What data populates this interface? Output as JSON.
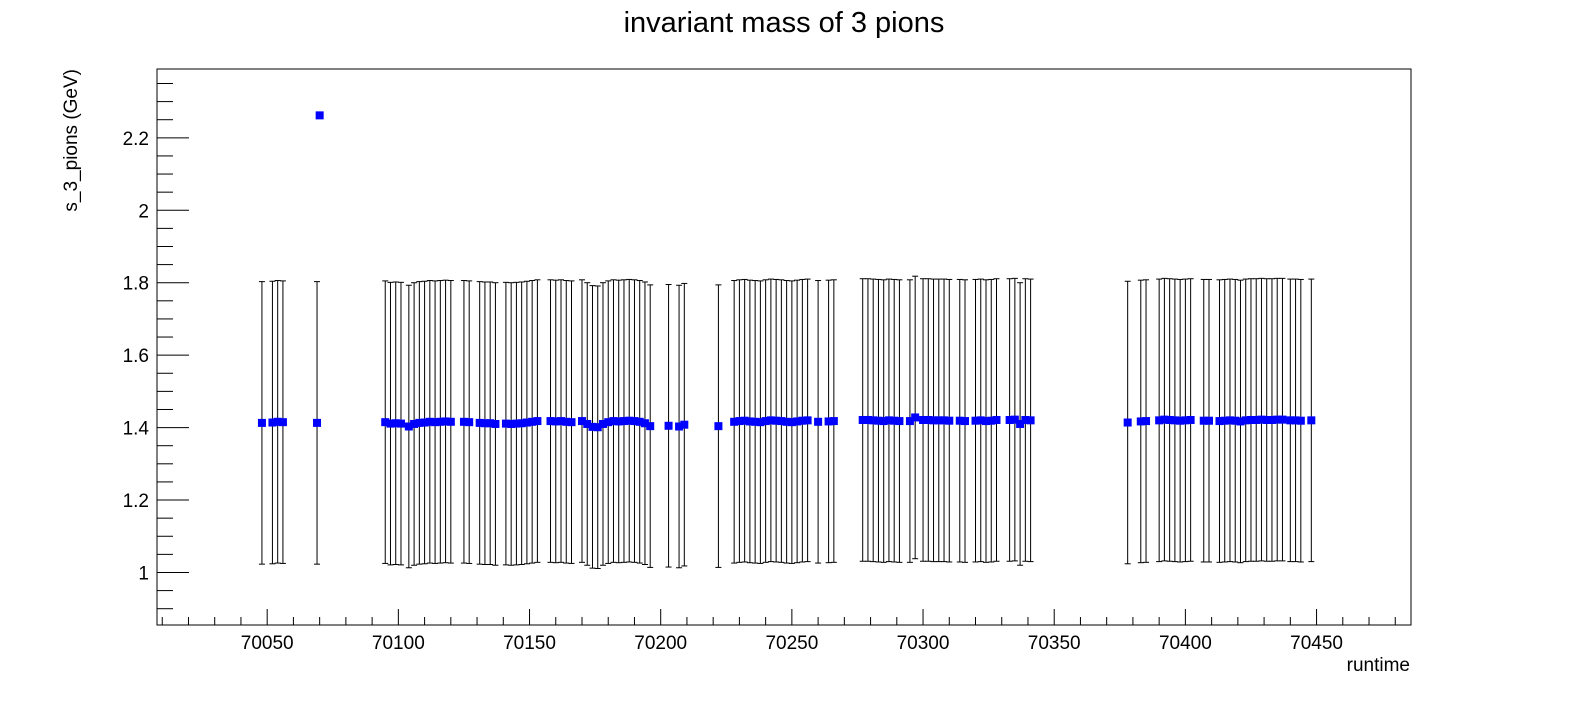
{
  "chart_data": {
    "type": "scatter",
    "title": "invariant mass of 3 pions",
    "xlabel": "runtime",
    "ylabel": "s_3_pions (GeV)",
    "xlim": [
      70008,
      70486
    ],
    "ylim": [
      0.855,
      2.39
    ],
    "x_ticks": [
      70050,
      70100,
      70150,
      70200,
      70250,
      70300,
      70350,
      70400,
      70450
    ],
    "x_tick_labels": [
      "70050",
      "70100",
      "70150",
      "70200",
      "70250",
      "70300",
      "70350",
      "70400",
      "70450"
    ],
    "y_ticks": [
      1.0,
      1.2,
      1.4,
      1.6,
      1.8,
      2.0,
      2.2
    ],
    "y_tick_labels": [
      "1",
      "1.2",
      "1.4",
      "1.6",
      "1.8",
      "2",
      "2.2"
    ],
    "grid": false,
    "marker_color": "#0000ff",
    "errorbar_color": "#000000",
    "series": [
      {
        "x": [
          70048,
          70052,
          70054,
          70056,
          70069,
          70070,
          70095,
          70097,
          70099,
          70101,
          70104,
          70106,
          70108,
          70110,
          70112,
          70114,
          70116,
          70118,
          70120,
          70125,
          70127,
          70131,
          70133,
          70135,
          70137,
          70141,
          70143,
          70145,
          70147,
          70149,
          70151,
          70153,
          70158,
          70160,
          70162,
          70164,
          70166,
          70170,
          70172,
          70174,
          70176,
          70178,
          70180,
          70182,
          70184,
          70186,
          70188,
          70190,
          70192,
          70194,
          70196,
          70203,
          70207,
          70209,
          70222,
          70228,
          70230,
          70232,
          70234,
          70236,
          70238,
          70240,
          70242,
          70244,
          70246,
          70248,
          70250,
          70252,
          70254,
          70256,
          70260,
          70264,
          70266,
          70277,
          70279,
          70281,
          70283,
          70285,
          70287,
          70289,
          70291,
          70295,
          70297,
          70300,
          70302,
          70304,
          70306,
          70308,
          70310,
          70314,
          70316,
          70320,
          70322,
          70324,
          70326,
          70328,
          70333,
          70335,
          70337,
          70339,
          70341,
          70378,
          70383,
          70385,
          70390,
          70392,
          70394,
          70396,
          70398,
          70400,
          70402,
          70407,
          70409,
          70413,
          70415,
          70417,
          70419,
          70421,
          70423,
          70425,
          70427,
          70429,
          70431,
          70433,
          70435,
          70437,
          70440,
          70442,
          70444,
          70448
        ],
        "y": [
          1.413,
          1.414,
          1.416,
          1.415,
          1.413,
          2.262,
          1.415,
          1.411,
          1.412,
          1.411,
          1.403,
          1.41,
          1.413,
          1.414,
          1.416,
          1.415,
          1.416,
          1.417,
          1.416,
          1.416,
          1.415,
          1.413,
          1.412,
          1.412,
          1.41,
          1.411,
          1.41,
          1.411,
          1.412,
          1.414,
          1.416,
          1.418,
          1.418,
          1.417,
          1.418,
          1.416,
          1.415,
          1.418,
          1.41,
          1.402,
          1.401,
          1.41,
          1.415,
          1.418,
          1.417,
          1.418,
          1.419,
          1.418,
          1.416,
          1.412,
          1.404,
          1.405,
          1.403,
          1.408,
          1.404,
          1.416,
          1.418,
          1.419,
          1.417,
          1.416,
          1.415,
          1.418,
          1.42,
          1.419,
          1.418,
          1.416,
          1.415,
          1.417,
          1.419,
          1.42,
          1.416,
          1.417,
          1.418,
          1.421,
          1.421,
          1.42,
          1.419,
          1.418,
          1.42,
          1.419,
          1.418,
          1.418,
          1.428,
          1.421,
          1.421,
          1.42,
          1.42,
          1.42,
          1.419,
          1.419,
          1.418,
          1.419,
          1.42,
          1.418,
          1.419,
          1.421,
          1.421,
          1.422,
          1.41,
          1.421,
          1.42,
          1.414,
          1.417,
          1.418,
          1.42,
          1.422,
          1.421,
          1.42,
          1.419,
          1.42,
          1.421,
          1.419,
          1.419,
          1.418,
          1.419,
          1.42,
          1.419,
          1.417,
          1.42,
          1.421,
          1.421,
          1.422,
          1.421,
          1.421,
          1.422,
          1.422,
          1.42,
          1.42,
          1.419,
          1.42
        ],
        "yerr": [
          0.39,
          0.39,
          0.39,
          0.39,
          0.39,
          0.007,
          0.39,
          0.39,
          0.39,
          0.39,
          0.39,
          0.39,
          0.39,
          0.39,
          0.39,
          0.39,
          0.39,
          0.39,
          0.39,
          0.39,
          0.39,
          0.39,
          0.39,
          0.39,
          0.39,
          0.39,
          0.39,
          0.39,
          0.39,
          0.39,
          0.39,
          0.39,
          0.39,
          0.39,
          0.39,
          0.39,
          0.39,
          0.39,
          0.39,
          0.39,
          0.39,
          0.39,
          0.39,
          0.39,
          0.39,
          0.39,
          0.39,
          0.39,
          0.39,
          0.39,
          0.39,
          0.39,
          0.39,
          0.39,
          0.39,
          0.39,
          0.39,
          0.39,
          0.39,
          0.39,
          0.39,
          0.39,
          0.39,
          0.39,
          0.39,
          0.39,
          0.39,
          0.39,
          0.39,
          0.39,
          0.39,
          0.39,
          0.39,
          0.39,
          0.39,
          0.39,
          0.39,
          0.39,
          0.39,
          0.39,
          0.39,
          0.39,
          0.39,
          0.39,
          0.39,
          0.39,
          0.39,
          0.39,
          0.39,
          0.39,
          0.39,
          0.39,
          0.39,
          0.39,
          0.39,
          0.39,
          0.39,
          0.39,
          0.39,
          0.39,
          0.39,
          0.39,
          0.39,
          0.39,
          0.39,
          0.39,
          0.39,
          0.39,
          0.39,
          0.39,
          0.39,
          0.39,
          0.39,
          0.39,
          0.39,
          0.39,
          0.39,
          0.39,
          0.39,
          0.39,
          0.39,
          0.39,
          0.39,
          0.39,
          0.39,
          0.39,
          0.39,
          0.39,
          0.39,
          0.39
        ]
      }
    ]
  }
}
